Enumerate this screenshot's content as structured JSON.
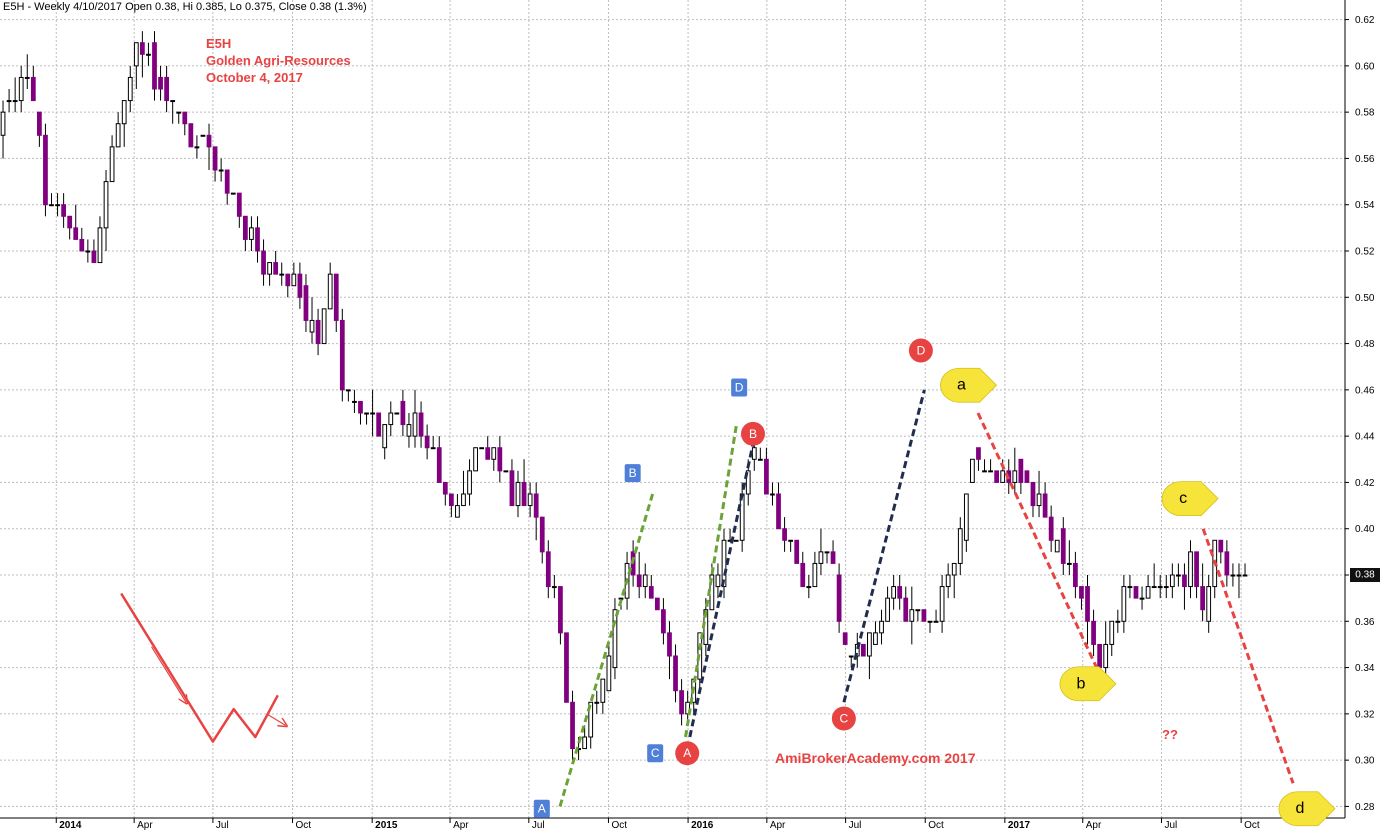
{
  "header": "E5H - Weekly 4/10/2017 Open 0.38, Hi 0.385, Lo 0.375, Close 0.38 (1.3%)",
  "title_lines": [
    "E5H",
    "Golden Agri-Resources",
    "October 4, 2017"
  ],
  "watermark": "AmiBrokerAcademy.com  2017",
  "question_marks": "??",
  "last_price_label": "0.38",
  "colors": {
    "bearish_body": "#800080",
    "bullish_body": "#ffffff",
    "wick": "#000000",
    "grid": "#bdbdbd",
    "red": "#e84343",
    "green": "#6aa336",
    "navy": "#1f2d4f",
    "blue_label": "#4f7fd6",
    "yellow_label": "#f7e43a"
  },
  "chart_data": {
    "type": "candlestick",
    "title": "E5H",
    "subtitle": "Golden Agri-Resources",
    "ylim": [
      0.275,
      0.625
    ],
    "y_ticks": [
      0.28,
      0.3,
      0.32,
      0.34,
      0.36,
      0.38,
      0.4,
      0.42,
      0.44,
      0.46,
      0.48,
      0.5,
      0.52,
      0.54,
      0.56,
      0.58,
      0.6,
      0.62
    ],
    "x_ticks": [
      {
        "label": "2014",
        "date": "2014-01-01",
        "year": true
      },
      {
        "label": "Apr",
        "date": "2014-04-01"
      },
      {
        "label": "Jul",
        "date": "2014-07-01"
      },
      {
        "label": "Oct",
        "date": "2014-10-01"
      },
      {
        "label": "2015",
        "date": "2015-01-01",
        "year": true
      },
      {
        "label": "Apr",
        "date": "2015-04-01"
      },
      {
        "label": "Jul",
        "date": "2015-07-01"
      },
      {
        "label": "Oct",
        "date": "2015-10-01"
      },
      {
        "label": "2016",
        "date": "2016-01-01",
        "year": true
      },
      {
        "label": "Apr",
        "date": "2016-04-01"
      },
      {
        "label": "Jul",
        "date": "2016-07-01"
      },
      {
        "label": "Oct",
        "date": "2016-10-01"
      },
      {
        "label": "2017",
        "date": "2017-01-01",
        "year": true
      },
      {
        "label": "Apr",
        "date": "2017-04-01"
      },
      {
        "label": "Jul",
        "date": "2017-07-01"
      },
      {
        "label": "Oct",
        "date": "2017-10-01"
      }
    ],
    "x_range": [
      "2013-10-28",
      "2018-01-29"
    ],
    "last_close": 0.38,
    "anchor_points": [
      [
        "2013-10-28",
        0.575
      ],
      [
        "2013-11-25",
        0.6
      ],
      [
        "2013-12-16",
        0.545
      ],
      [
        "2014-01-06",
        0.53
      ],
      [
        "2014-02-10",
        0.515
      ],
      [
        "2014-03-03",
        0.56
      ],
      [
        "2014-03-31",
        0.61
      ],
      [
        "2014-04-28",
        0.59
      ],
      [
        "2014-06-02",
        0.57
      ],
      [
        "2014-07-07",
        0.555
      ],
      [
        "2014-08-11",
        0.525
      ],
      [
        "2014-09-08",
        0.505
      ],
      [
        "2014-09-29",
        0.51
      ],
      [
        "2014-10-27",
        0.48
      ],
      [
        "2014-11-10",
        0.515
      ],
      [
        "2014-11-24",
        0.46
      ],
      [
        "2014-12-22",
        0.445
      ],
      [
        "2015-02-16",
        0.45
      ],
      [
        "2015-04-06",
        0.405
      ],
      [
        "2015-05-04",
        0.44
      ],
      [
        "2015-06-01",
        0.42
      ],
      [
        "2015-06-29",
        0.41
      ],
      [
        "2015-07-27",
        0.37
      ],
      [
        "2015-08-17",
        0.305
      ],
      [
        "2015-09-07",
        0.32
      ],
      [
        "2015-09-28",
        0.35
      ],
      [
        "2015-10-19",
        0.39
      ],
      [
        "2015-11-09",
        0.375
      ],
      [
        "2015-11-30",
        0.355
      ],
      [
        "2015-12-21",
        0.315
      ],
      [
        "2016-01-25",
        0.375
      ],
      [
        "2016-02-22",
        0.4
      ],
      [
        "2016-03-14",
        0.43
      ],
      [
        "2016-04-11",
        0.405
      ],
      [
        "2016-05-09",
        0.375
      ],
      [
        "2016-06-06",
        0.395
      ],
      [
        "2016-06-27",
        0.345
      ],
      [
        "2016-07-25",
        0.35
      ],
      [
        "2016-08-22",
        0.37
      ],
      [
        "2016-09-19",
        0.36
      ],
      [
        "2016-10-10",
        0.365
      ],
      [
        "2016-10-31",
        0.39
      ],
      [
        "2016-11-21",
        0.43
      ],
      [
        "2016-12-19",
        0.425
      ],
      [
        "2017-01-16",
        0.42
      ],
      [
        "2017-02-06",
        0.41
      ],
      [
        "2017-03-06",
        0.385
      ],
      [
        "2017-04-03",
        0.365
      ],
      [
        "2017-04-17",
        0.345
      ],
      [
        "2017-05-08",
        0.365
      ],
      [
        "2017-06-05",
        0.375
      ],
      [
        "2017-07-03",
        0.375
      ],
      [
        "2017-07-31",
        0.385
      ],
      [
        "2017-08-14",
        0.365
      ],
      [
        "2017-08-28",
        0.39
      ],
      [
        "2017-09-25",
        0.38
      ],
      [
        "2017-10-02",
        0.38
      ]
    ],
    "annotations": {
      "lines": [
        {
          "style": "solid",
          "color": "red",
          "points": [
            [
              "2014-03-17",
              0.372
            ],
            [
              "2014-07-01",
              0.308
            ],
            [
              "2014-07-25",
              0.322
            ],
            [
              "2014-08-19",
              0.31
            ],
            [
              "2014-09-14",
              0.328
            ]
          ]
        },
        {
          "style": "solid-arrow",
          "color": "red",
          "points": [
            [
              "2014-04-21",
              0.349
            ],
            [
              "2014-05-31",
              0.325
            ]
          ]
        },
        {
          "style": "solid-arrow",
          "color": "red",
          "points": [
            [
              "2014-09-01",
              0.32
            ],
            [
              "2014-09-23",
              0.315
            ]
          ]
        },
        {
          "style": "dashed",
          "color": "green",
          "points": [
            [
              "2015-08-06",
              0.28
            ],
            [
              "2015-11-21",
              0.415
            ]
          ]
        },
        {
          "style": "dashed",
          "color": "green",
          "points": [
            [
              "2015-12-29",
              0.31
            ],
            [
              "2016-02-26",
              0.445
            ]
          ]
        },
        {
          "style": "dashed",
          "color": "navy",
          "points": [
            [
              "2016-01-03",
              0.31
            ],
            [
              "2016-03-18",
              0.44
            ]
          ]
        },
        {
          "style": "dashed",
          "color": "navy",
          "points": [
            [
              "2016-06-29",
              0.325
            ],
            [
              "2016-09-30",
              0.46
            ]
          ]
        },
        {
          "style": "dashed",
          "color": "red",
          "points": [
            [
              "2016-12-01",
              0.45
            ],
            [
              "2017-04-17",
              0.34
            ]
          ]
        },
        {
          "style": "dashed",
          "color": "red",
          "points": [
            [
              "2017-08-18",
              0.4
            ],
            [
              "2017-11-30",
              0.29
            ]
          ]
        }
      ],
      "labels": [
        {
          "text": "A",
          "shape": "blue-square",
          "date": "2015-07-16",
          "price": 0.279
        },
        {
          "text": "B",
          "shape": "blue-square",
          "date": "2015-10-29",
          "price": 0.424
        },
        {
          "text": "C",
          "shape": "blue-square",
          "date": "2015-11-24",
          "price": 0.303
        },
        {
          "text": "D",
          "shape": "blue-square",
          "date": "2016-02-29",
          "price": 0.461
        },
        {
          "text": "A",
          "shape": "red-circle",
          "date": "2015-12-31",
          "price": 0.303
        },
        {
          "text": "B",
          "shape": "red-circle",
          "date": "2016-03-16",
          "price": 0.441
        },
        {
          "text": "C",
          "shape": "red-circle",
          "date": "2016-06-29",
          "price": 0.318
        },
        {
          "text": "D",
          "shape": "red-circle",
          "date": "2016-09-26",
          "price": 0.477
        },
        {
          "text": "a",
          "shape": "yellow-pointer",
          "date": "2016-11-20",
          "price": 0.462
        },
        {
          "text": "b",
          "shape": "yellow-pointer",
          "date": "2017-04-07",
          "price": 0.333
        },
        {
          "text": "c",
          "shape": "yellow-pointer",
          "date": "2017-08-03",
          "price": 0.413
        },
        {
          "text": "d",
          "shape": "yellow-pointer",
          "date": "2017-12-16",
          "price": 0.279
        }
      ]
    }
  }
}
